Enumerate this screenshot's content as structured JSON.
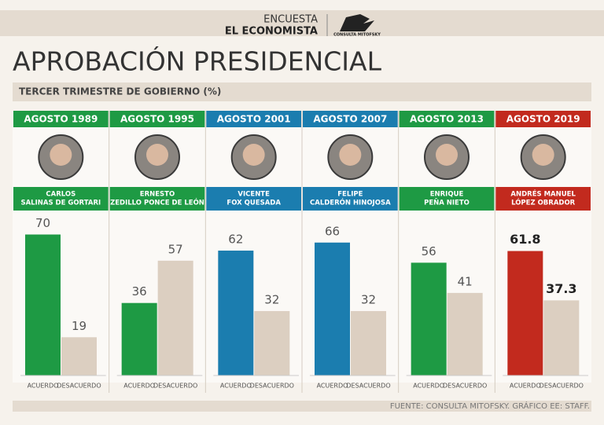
{
  "header": {
    "line1": "ENCUESTA",
    "line2": "EL ECONOMISTA",
    "logo": "CONSULTA MITOFSKY"
  },
  "title": "APROBACIÓN PRESIDENCIAL",
  "subtitle": "TERCER TRIMESTRE DE GOBIERNO (%)",
  "source": "FUENTE: CONSULTA MITOFSKY. GRÁFICO EE: STAFF.",
  "chart_data": [
    {
      "type": "bar",
      "title": "AGOSTO 1989",
      "color": "#1e9a44",
      "name": [
        "CARLOS",
        "SALINAS DE GORTARI"
      ],
      "categories": [
        "ACUERDO",
        "DESACUERDO"
      ],
      "values": [
        70,
        19
      ],
      "colors": [
        "#1e9a44",
        "#dccfc1"
      ],
      "ylim": [
        0,
        78
      ]
    },
    {
      "type": "bar",
      "title": "AGOSTO 1995",
      "color": "#1e9a44",
      "name": [
        "ERNESTO",
        "ZEDILLO PONCE DE LEÓN"
      ],
      "categories": [
        "ACUERDO",
        "DESACUERDO"
      ],
      "values": [
        36,
        57
      ],
      "colors": [
        "#1e9a44",
        "#dccfc1"
      ],
      "ylim": [
        0,
        78
      ]
    },
    {
      "type": "bar",
      "title": "AGOSTO 2001",
      "color": "#1b7daf",
      "name": [
        "VICENTE",
        "FOX QUESADA"
      ],
      "categories": [
        "ACUERDO",
        "DESACUERDO"
      ],
      "values": [
        62,
        32
      ],
      "colors": [
        "#1b7daf",
        "#dccfc1"
      ],
      "ylim": [
        0,
        78
      ]
    },
    {
      "type": "bar",
      "title": "AGOSTO 2007",
      "color": "#1b7daf",
      "name": [
        "FELIPE",
        "CALDERÓN HINOJOSA"
      ],
      "categories": [
        "ACUERDO",
        "DESACUERDO"
      ],
      "values": [
        66,
        32
      ],
      "colors": [
        "#1b7daf",
        "#dccfc1"
      ],
      "ylim": [
        0,
        78
      ]
    },
    {
      "type": "bar",
      "title": "AGOSTO 2013",
      "color": "#1e9a44",
      "name": [
        "ENRIQUE",
        "PEÑA NIETO"
      ],
      "categories": [
        "ACUERDO",
        "DESACUERDO"
      ],
      "values": [
        56,
        41
      ],
      "colors": [
        "#1e9a44",
        "#dccfc1"
      ],
      "ylim": [
        0,
        78
      ]
    },
    {
      "type": "bar",
      "title": "AGOSTO 2019",
      "color": "#c22a1e",
      "name": [
        "ANDRÉS MANUEL",
        "LÓPEZ OBRADOR"
      ],
      "categories": [
        "ACUERDO",
        "DESACUERDO"
      ],
      "values": [
        61.8,
        37.3
      ],
      "colors": [
        "#c22a1e",
        "#dccfc1"
      ],
      "ylim": [
        0,
        78
      ]
    }
  ]
}
